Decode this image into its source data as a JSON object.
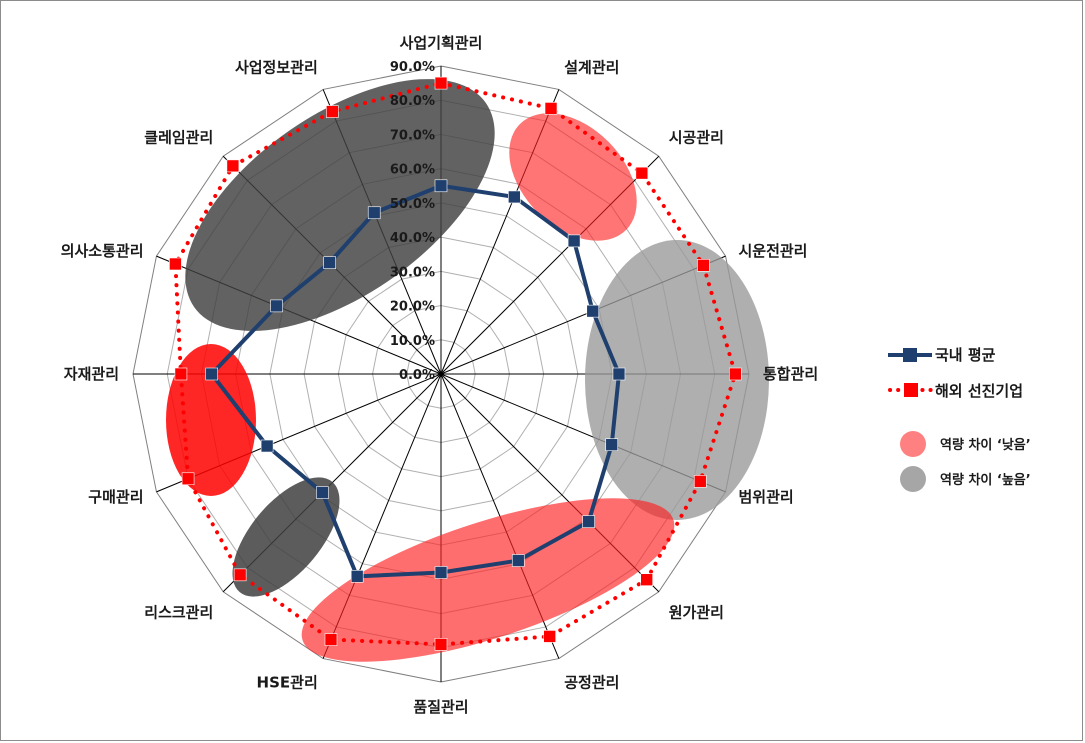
{
  "chart_data": {
    "type": "radar",
    "categories": [
      "사업기획관리",
      "설계관리",
      "시공관리",
      "시운전관리",
      "통합관리",
      "범위관리",
      "원가관리",
      "공정관리",
      "품질관리",
      "HSE관리",
      "리스크관리",
      "구매관리",
      "자재관리",
      "의사소통관리",
      "클레임관리",
      "사업정보관리"
    ],
    "rlim": [
      0,
      90
    ],
    "tick_labels": [
      "0.0%",
      "10.0%",
      "20.0%",
      "30.0%",
      "40.0%",
      "50.0%",
      "60.0%",
      "70.0%",
      "80.0%",
      "90.0%"
    ],
    "series": [
      {
        "name": "국내 평균",
        "color": "#1f3f6e",
        "style": "solid",
        "marker": "square",
        "values": [
          55,
          56,
          55,
          48,
          52,
          54,
          61,
          59,
          58,
          64,
          49,
          55,
          67,
          52,
          46,
          51
        ]
      },
      {
        "name": "해외 선진기업",
        "color": "#ff0000",
        "style": "dotted",
        "marker": "square",
        "values": [
          85,
          84,
          83,
          83,
          86,
          82,
          85,
          83,
          79,
          84,
          83,
          80,
          76,
          84,
          86,
          83
        ]
      }
    ],
    "highlight_legend": [
      {
        "label": "역량 차이 ‘낮음’",
        "color": "#ff8080"
      },
      {
        "label": "역량 차이 ‘높음’",
        "color": "#a6a6a6"
      }
    ],
    "legend_position": "right"
  }
}
